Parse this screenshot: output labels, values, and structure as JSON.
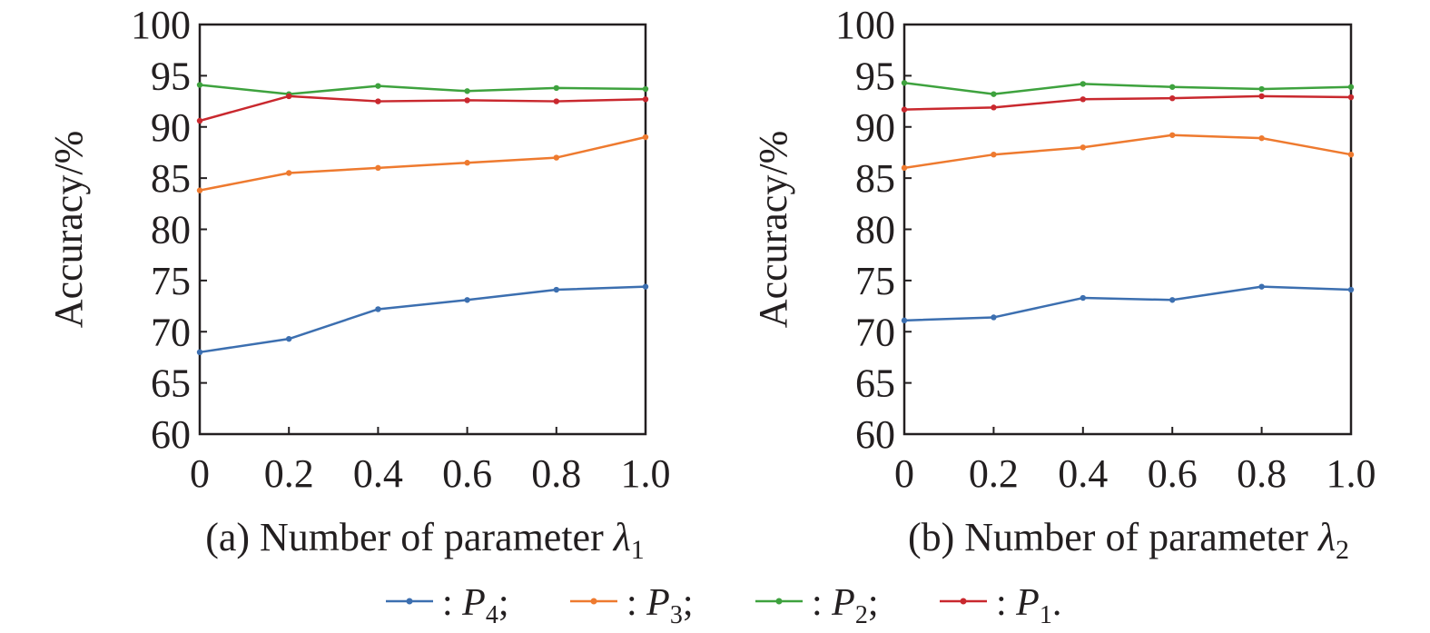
{
  "chart_data": [
    {
      "type": "line",
      "title": "",
      "xlabel": "(a) Number of parameter",
      "xlabel_symbol": "λ",
      "xlabel_subscript": "1",
      "ylabel": "Accuracy/%",
      "x": [
        0,
        0.2,
        0.4,
        0.6,
        0.8,
        1.0
      ],
      "x_tick_labels": [
        "0",
        "0.2",
        "0.4",
        "0.6",
        "0.8",
        "1.0"
      ],
      "y_ticks": [
        60,
        65,
        70,
        75,
        80,
        85,
        90,
        95,
        100
      ],
      "xlim": [
        0,
        1.0
      ],
      "ylim": [
        60,
        100
      ],
      "grid": false,
      "series": [
        {
          "name": "P4",
          "color": "#3c6fb0",
          "values": [
            68.0,
            69.3,
            72.2,
            73.1,
            74.1,
            74.4
          ]
        },
        {
          "name": "P3",
          "color": "#ee7a2f",
          "values": [
            83.8,
            85.5,
            86.0,
            86.5,
            87.0,
            89.0
          ]
        },
        {
          "name": "P2",
          "color": "#3ea23e",
          "values": [
            94.1,
            93.2,
            94.0,
            93.5,
            93.8,
            93.7
          ]
        },
        {
          "name": "P1",
          "color": "#c9282e",
          "values": [
            90.6,
            93.0,
            92.5,
            92.6,
            92.5,
            92.7
          ]
        }
      ]
    },
    {
      "type": "line",
      "title": "",
      "xlabel": "(b) Number of parameter",
      "xlabel_symbol": "λ",
      "xlabel_subscript": "2",
      "ylabel": "Accuracy/%",
      "x": [
        0,
        0.2,
        0.4,
        0.6,
        0.8,
        1.0
      ],
      "x_tick_labels": [
        "0",
        "0.2",
        "0.4",
        "0.6",
        "0.8",
        "1.0"
      ],
      "y_ticks": [
        60,
        65,
        70,
        75,
        80,
        85,
        90,
        95,
        100
      ],
      "xlim": [
        0,
        1.0
      ],
      "ylim": [
        60,
        100
      ],
      "grid": false,
      "series": [
        {
          "name": "P4",
          "color": "#3c6fb0",
          "values": [
            71.1,
            71.4,
            73.3,
            73.1,
            74.4,
            74.1
          ]
        },
        {
          "name": "P3",
          "color": "#ee7a2f",
          "values": [
            86.0,
            87.3,
            88.0,
            89.2,
            88.9,
            87.3
          ]
        },
        {
          "name": "P2",
          "color": "#3ea23e",
          "values": [
            94.3,
            93.2,
            94.2,
            93.9,
            93.7,
            93.9
          ]
        },
        {
          "name": "P1",
          "color": "#c9282e",
          "values": [
            91.7,
            91.9,
            92.7,
            92.8,
            93.0,
            92.9
          ]
        }
      ]
    }
  ],
  "legend": {
    "placement": "bottom",
    "entries": [
      {
        "separator": ":",
        "symbol": "P",
        "subscript": "4",
        "terminator": ";",
        "color": "#3c6fb0"
      },
      {
        "separator": ":",
        "symbol": "P",
        "subscript": "3",
        "terminator": ";",
        "color": "#ee7a2f"
      },
      {
        "separator": ":",
        "symbol": "P",
        "subscript": "2",
        "terminator": ";",
        "color": "#3ea23e"
      },
      {
        "separator": ":",
        "symbol": "P",
        "subscript": "1",
        "terminator": ".",
        "color": "#c9282e"
      }
    ]
  }
}
